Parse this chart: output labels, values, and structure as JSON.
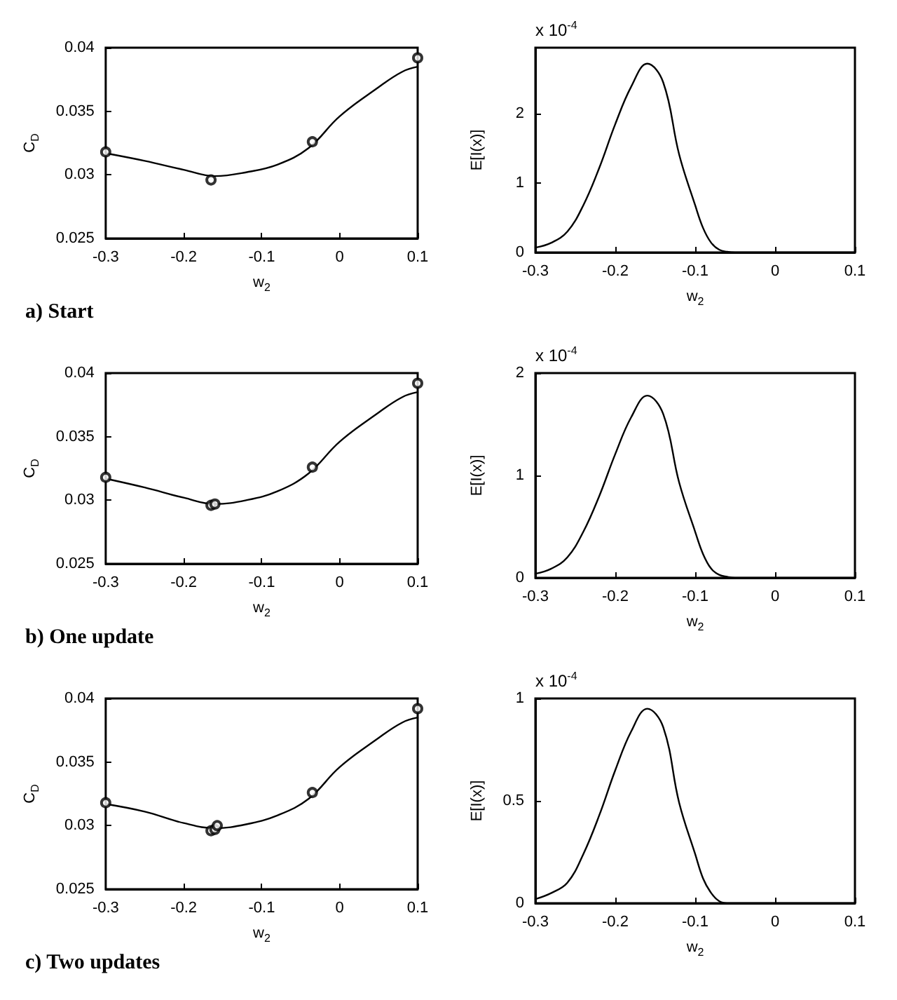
{
  "chart_data": [
    {
      "type": "line",
      "xlabel": "w$_{2}$",
      "ylabel": "C$_{D}$",
      "xlim": [
        -0.3,
        0.1
      ],
      "xticks": [
        -0.3,
        -0.2,
        -0.1,
        0,
        0.1
      ],
      "ylim": [
        0.025,
        0.04
      ],
      "yticks": [
        0.025,
        0.03,
        0.035,
        0.04
      ],
      "grid": false,
      "annotations": [
        "a) Start"
      ],
      "series": [
        {
          "color": "#000000",
          "marker": "none",
          "x": [
            -0.3,
            -0.25,
            -0.2,
            -0.16,
            -0.12,
            -0.08,
            -0.04,
            0,
            0.05,
            0.08,
            0.1
          ],
          "values": [
            0.0317,
            0.0311,
            0.0304,
            0.0299,
            0.0302,
            0.0308,
            0.0321,
            0.0346,
            0.0369,
            0.0381,
            0.0385
          ]
        },
        {
          "type": "scatter",
          "color": "#000000",
          "marker": "circle",
          "x": [
            -0.3,
            -0.165,
            -0.035,
            0.1
          ],
          "values": [
            0.0318,
            0.0296,
            0.0326,
            0.0392
          ]
        }
      ]
    },
    {
      "type": "line",
      "xlabel": "w$_{2}$",
      "ylabel": "E[I(x)]",
      "xlim": [
        -0.3,
        0.1
      ],
      "xticks": [
        -0.3,
        -0.2,
        -0.1,
        0,
        0.1
      ],
      "ylim": [
        0,
        2.95
      ],
      "yticks": [
        0,
        1,
        2
      ],
      "grid": false,
      "annotations": [
        "x 10$^{-4}$"
      ],
      "series": [
        {
          "color": "#000000",
          "x": [
            -0.3,
            -0.28,
            -0.26,
            -0.24,
            -0.22,
            -0.2,
            -0.18,
            -0.16,
            -0.14,
            -0.12,
            -0.1,
            -0.09,
            -0.08,
            -0.07,
            -0.06,
            -0.05,
            0,
            0.1
          ],
          "values": [
            0.07,
            0.14,
            0.3,
            0.68,
            1.22,
            1.85,
            2.39,
            2.72,
            2.45,
            1.41,
            0.68,
            0.35,
            0.14,
            0.04,
            0.01,
            0,
            0,
            0
          ]
        }
      ]
    },
    {
      "type": "line",
      "xlabel": "w$_{2}$",
      "ylabel": "C$_{D}$",
      "xlim": [
        -0.3,
        0.1
      ],
      "xticks": [
        -0.3,
        -0.2,
        -0.1,
        0,
        0.1
      ],
      "ylim": [
        0.025,
        0.04
      ],
      "yticks": [
        0.025,
        0.03,
        0.035,
        0.04
      ],
      "grid": false,
      "annotations": [
        "b) One update"
      ],
      "series": [
        {
          "color": "#000000",
          "marker": "none",
          "x": [
            -0.3,
            -0.25,
            -0.2,
            -0.16,
            -0.12,
            -0.08,
            -0.04,
            0,
            0.05,
            0.08,
            0.1
          ],
          "values": [
            0.0317,
            0.031,
            0.0302,
            0.0297,
            0.03,
            0.0307,
            0.0321,
            0.0346,
            0.0369,
            0.0381,
            0.0385
          ]
        },
        {
          "type": "scatter",
          "color": "#000000",
          "marker": "circle",
          "x": [
            -0.3,
            -0.165,
            -0.16,
            -0.035,
            0.1
          ],
          "values": [
            0.0318,
            0.0296,
            0.0297,
            0.0326,
            0.0392
          ]
        }
      ]
    },
    {
      "type": "line",
      "xlabel": "w$_{2}$",
      "ylabel": "E[I(x)]",
      "xlim": [
        -0.3,
        0.1
      ],
      "xticks": [
        -0.3,
        -0.2,
        -0.1,
        0,
        0.1
      ],
      "ylim": [
        0,
        2
      ],
      "yticks": [
        0,
        1,
        2
      ],
      "grid": false,
      "annotations": [
        "x 10$^{-4}$"
      ],
      "series": [
        {
          "color": "#000000",
          "x": [
            -0.3,
            -0.28,
            -0.26,
            -0.24,
            -0.22,
            -0.2,
            -0.18,
            -0.16,
            -0.14,
            -0.12,
            -0.1,
            -0.09,
            -0.08,
            -0.07,
            -0.06,
            -0.05,
            0,
            0.1
          ],
          "values": [
            0.04,
            0.09,
            0.2,
            0.45,
            0.8,
            1.21,
            1.57,
            1.78,
            1.6,
            0.93,
            0.45,
            0.23,
            0.09,
            0.03,
            0.01,
            0,
            0,
            0
          ]
        }
      ]
    },
    {
      "type": "line",
      "xlabel": "w$_{2}$",
      "ylabel": "C$_{D}$",
      "xlim": [
        -0.3,
        0.1
      ],
      "xticks": [
        -0.3,
        -0.2,
        -0.1,
        0,
        0.1
      ],
      "ylim": [
        0.025,
        0.04
      ],
      "yticks": [
        0.025,
        0.03,
        0.035,
        0.04
      ],
      "grid": false,
      "annotations": [
        "c) Two updates"
      ],
      "series": [
        {
          "color": "#000000",
          "marker": "none",
          "x": [
            -0.3,
            -0.25,
            -0.2,
            -0.16,
            -0.12,
            -0.08,
            -0.04,
            0,
            0.05,
            0.08,
            0.1
          ],
          "values": [
            0.0317,
            0.0311,
            0.0302,
            0.0298,
            0.0301,
            0.0308,
            0.0321,
            0.0346,
            0.0369,
            0.0381,
            0.0385
          ]
        },
        {
          "type": "scatter",
          "color": "#000000",
          "marker": "circle",
          "x": [
            -0.3,
            -0.165,
            -0.16,
            -0.157,
            -0.035,
            0.1
          ],
          "values": [
            0.0318,
            0.0296,
            0.0297,
            0.03,
            0.0326,
            0.0392
          ]
        }
      ]
    },
    {
      "type": "line",
      "xlabel": "w$_{2}$",
      "ylabel": "E[I(x)]",
      "xlim": [
        -0.3,
        0.1
      ],
      "xticks": [
        -0.3,
        -0.2,
        -0.1,
        0,
        0.1
      ],
      "ylim": [
        0,
        1
      ],
      "yticks": [
        0,
        0.5,
        1
      ],
      "grid": false,
      "annotations": [
        "x 10$^{-4}$"
      ],
      "series": [
        {
          "color": "#000000",
          "x": [
            -0.3,
            -0.28,
            -0.26,
            -0.24,
            -0.22,
            -0.2,
            -0.18,
            -0.16,
            -0.14,
            -0.12,
            -0.1,
            -0.09,
            -0.08,
            -0.07,
            -0.06,
            -0.05,
            0,
            0.1
          ],
          "values": [
            0.02,
            0.05,
            0.1,
            0.24,
            0.43,
            0.65,
            0.84,
            0.95,
            0.86,
            0.49,
            0.24,
            0.12,
            0.05,
            0.01,
            0,
            0,
            0,
            0
          ]
        }
      ]
    }
  ]
}
